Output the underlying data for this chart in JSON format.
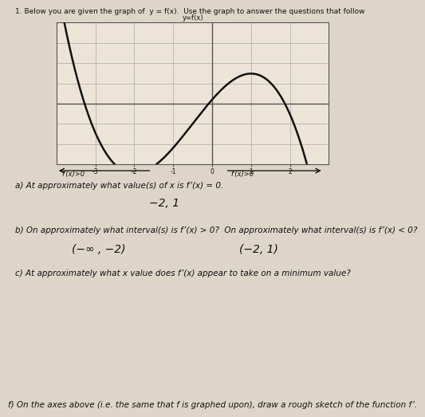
{
  "title": "1. Below you are given the graph of  y = f(x).  Use the graph to answer the questions that follow",
  "graph_label": "y=f(x)",
  "xlim": [
    -4,
    3
  ],
  "ylim": [
    -3,
    4
  ],
  "xtick_vals": [
    -3,
    -2,
    -1,
    0,
    1,
    2
  ],
  "xtick_labels": [
    "-3",
    "-2",
    "-1",
    "0",
    "1",
    "2"
  ],
  "bg_color": "#ddd5c8",
  "graph_bg": "#ede4d8",
  "curve_color": "#111111",
  "grid_color": "#aaaaaa",
  "spine_color": "#555555",
  "text_color": "#111111",
  "ann_left_text": "f'(x)>0",
  "ann_right_text": "f'(x)>0",
  "qa_a_label": "a) At approximately what value(s) of x is f’(x) = 0.",
  "qa_a_answer": "−2, 1",
  "qa_b_label": "b) On approximately what interval(s) is f’(x) > 0?  On approximately what interval(s) is f’(x) < 0?",
  "qa_b_ans_left": "(−∞ , −2)",
  "qa_b_ans_right": "(−2, 1)",
  "qa_c_label": "c) At approximately what x value does f’(x) appear to take on a minimum value?",
  "qa_f_label": "f) On the axes above (i.e. the same that f is graphed upon), draw a rough sketch of the function f’."
}
